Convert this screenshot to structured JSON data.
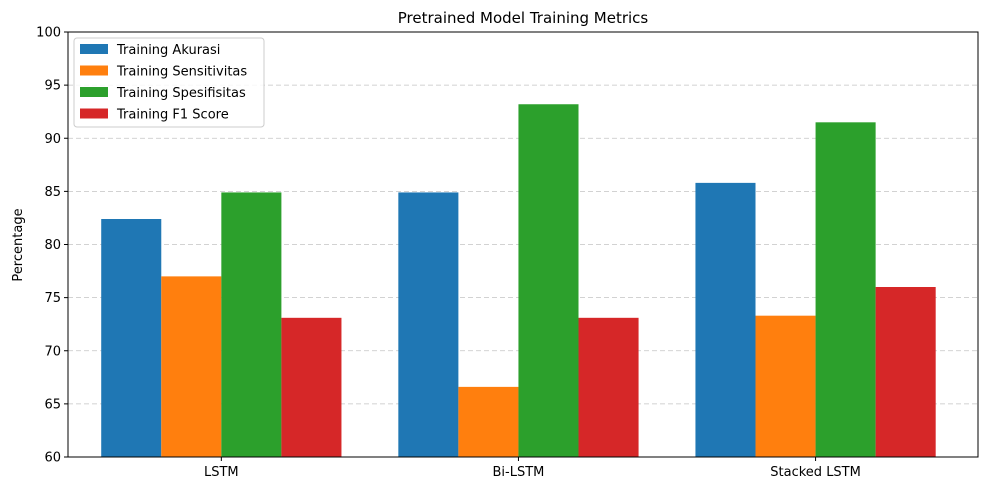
{
  "chart_data": {
    "type": "bar",
    "title": "Pretrained Model Training Metrics",
    "xlabel": "",
    "ylabel": "Percentage",
    "ylim": [
      60,
      100
    ],
    "yticks": [
      60,
      65,
      70,
      75,
      80,
      85,
      90,
      95,
      100
    ],
    "grid": "y-dashed",
    "legend_position": "top-left",
    "categories": [
      "LSTM",
      "Bi-LSTM",
      "Stacked LSTM"
    ],
    "series": [
      {
        "name": "Training Akurasi",
        "color": "#1f77b4",
        "values": [
          82.4,
          84.9,
          85.8
        ]
      },
      {
        "name": "Training Sensitivitas",
        "color": "#ff7f0e",
        "values": [
          77.0,
          66.6,
          73.3
        ]
      },
      {
        "name": "Training Spesifisitas",
        "color": "#2ca02c",
        "values": [
          84.9,
          93.2,
          91.5
        ]
      },
      {
        "name": "Training F1 Score",
        "color": "#d62728",
        "values": [
          73.1,
          73.1,
          76.0
        ]
      }
    ]
  }
}
